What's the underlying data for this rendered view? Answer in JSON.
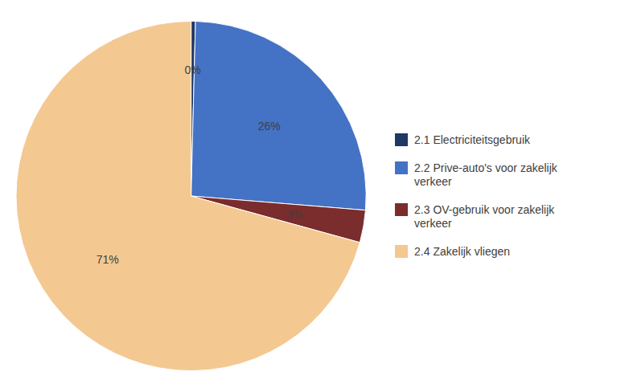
{
  "chart_data": {
    "type": "pie",
    "categories": [
      "2.1 Electriciteitsgebruik",
      "2.2 Prive-auto's voor zakelijk\nverkeer",
      "2.3 OV-gebruik voor zakelijk\nverkeer",
      "2.4 Zakelijk vliegen"
    ],
    "values": [
      0.4,
      26,
      3,
      71
    ],
    "value_labels": [
      "0%",
      "26%",
      "3%",
      "71%"
    ],
    "colors": [
      "#1F3864",
      "#4472C4",
      "#7B2C2C",
      "#F4C891"
    ],
    "data_labels": true,
    "legend": "right"
  }
}
